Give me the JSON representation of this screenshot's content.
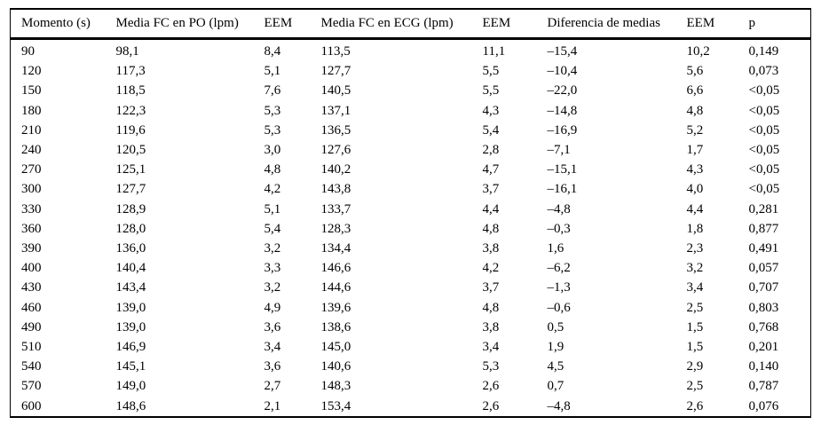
{
  "colors": {
    "text": "#000000",
    "background": "#ffffff",
    "rule": "#000000"
  },
  "chart_data": {
    "type": "table",
    "columns": [
      "Momento (s)",
      "Media FC en PO (lpm)",
      "EEM",
      "Media FC en ECG (lpm)",
      "EEM",
      "Diferencia de medias",
      "EEM",
      "p"
    ],
    "rows": [
      [
        "90",
        "98,1",
        "8,4",
        "113,5",
        "11,1",
        "–15,4",
        "10,2",
        "0,149"
      ],
      [
        "120",
        "117,3",
        "5,1",
        "127,7",
        "5,5",
        "–10,4",
        "5,6",
        "0,073"
      ],
      [
        "150",
        "118,5",
        "7,6",
        "140,5",
        "5,5",
        "–22,0",
        "6,6",
        "<0,05"
      ],
      [
        "180",
        "122,3",
        "5,3",
        "137,1",
        "4,3",
        "–14,8",
        "4,8",
        "<0,05"
      ],
      [
        "210",
        "119,6",
        "5,3",
        "136,5",
        "5,4",
        "–16,9",
        "5,2",
        "<0,05"
      ],
      [
        "240",
        "120,5",
        "3,0",
        "127,6",
        "2,8",
        "–7,1",
        "1,7",
        "<0,05"
      ],
      [
        "270",
        "125,1",
        "4,8",
        "140,2",
        "4,7",
        "–15,1",
        "4,3",
        "<0,05"
      ],
      [
        "300",
        "127,7",
        "4,2",
        "143,8",
        "3,7",
        "–16,1",
        "4,0",
        "<0,05"
      ],
      [
        "330",
        "128,9",
        "5,1",
        "133,7",
        "4,4",
        "–4,8",
        "4,4",
        "0,281"
      ],
      [
        "360",
        "128,0",
        "5,4",
        "128,3",
        "4,8",
        "–0,3",
        "1,8",
        "0,877"
      ],
      [
        "390",
        "136,0",
        "3,2",
        "134,4",
        "3,8",
        "1,6",
        "2,3",
        "0,491"
      ],
      [
        "400",
        "140,4",
        "3,3",
        "146,6",
        "4,2",
        "–6,2",
        "3,2",
        "0,057"
      ],
      [
        "430",
        "143,4",
        "3,2",
        "144,6",
        "3,7",
        "–1,3",
        "3,4",
        "0,707"
      ],
      [
        "460",
        "139,0",
        "4,9",
        "139,6",
        "4,8",
        "–0,6",
        "2,5",
        "0,803"
      ],
      [
        "490",
        "139,0",
        "3,6",
        "138,6",
        "3,8",
        "0,5",
        "1,5",
        "0,768"
      ],
      [
        "510",
        "146,9",
        "3,4",
        "145,0",
        "3,4",
        "1,9",
        "1,5",
        "0,201"
      ],
      [
        "540",
        "145,1",
        "3,6",
        "140,6",
        "5,3",
        "4,5",
        "2,9",
        "0,140"
      ],
      [
        "570",
        "149,0",
        "2,7",
        "148,3",
        "2,6",
        "0,7",
        "2,5",
        "0,787"
      ],
      [
        "600",
        "148,6",
        "2,1",
        "153,4",
        "2,6",
        "–4,8",
        "2,6",
        "0,076"
      ]
    ]
  }
}
